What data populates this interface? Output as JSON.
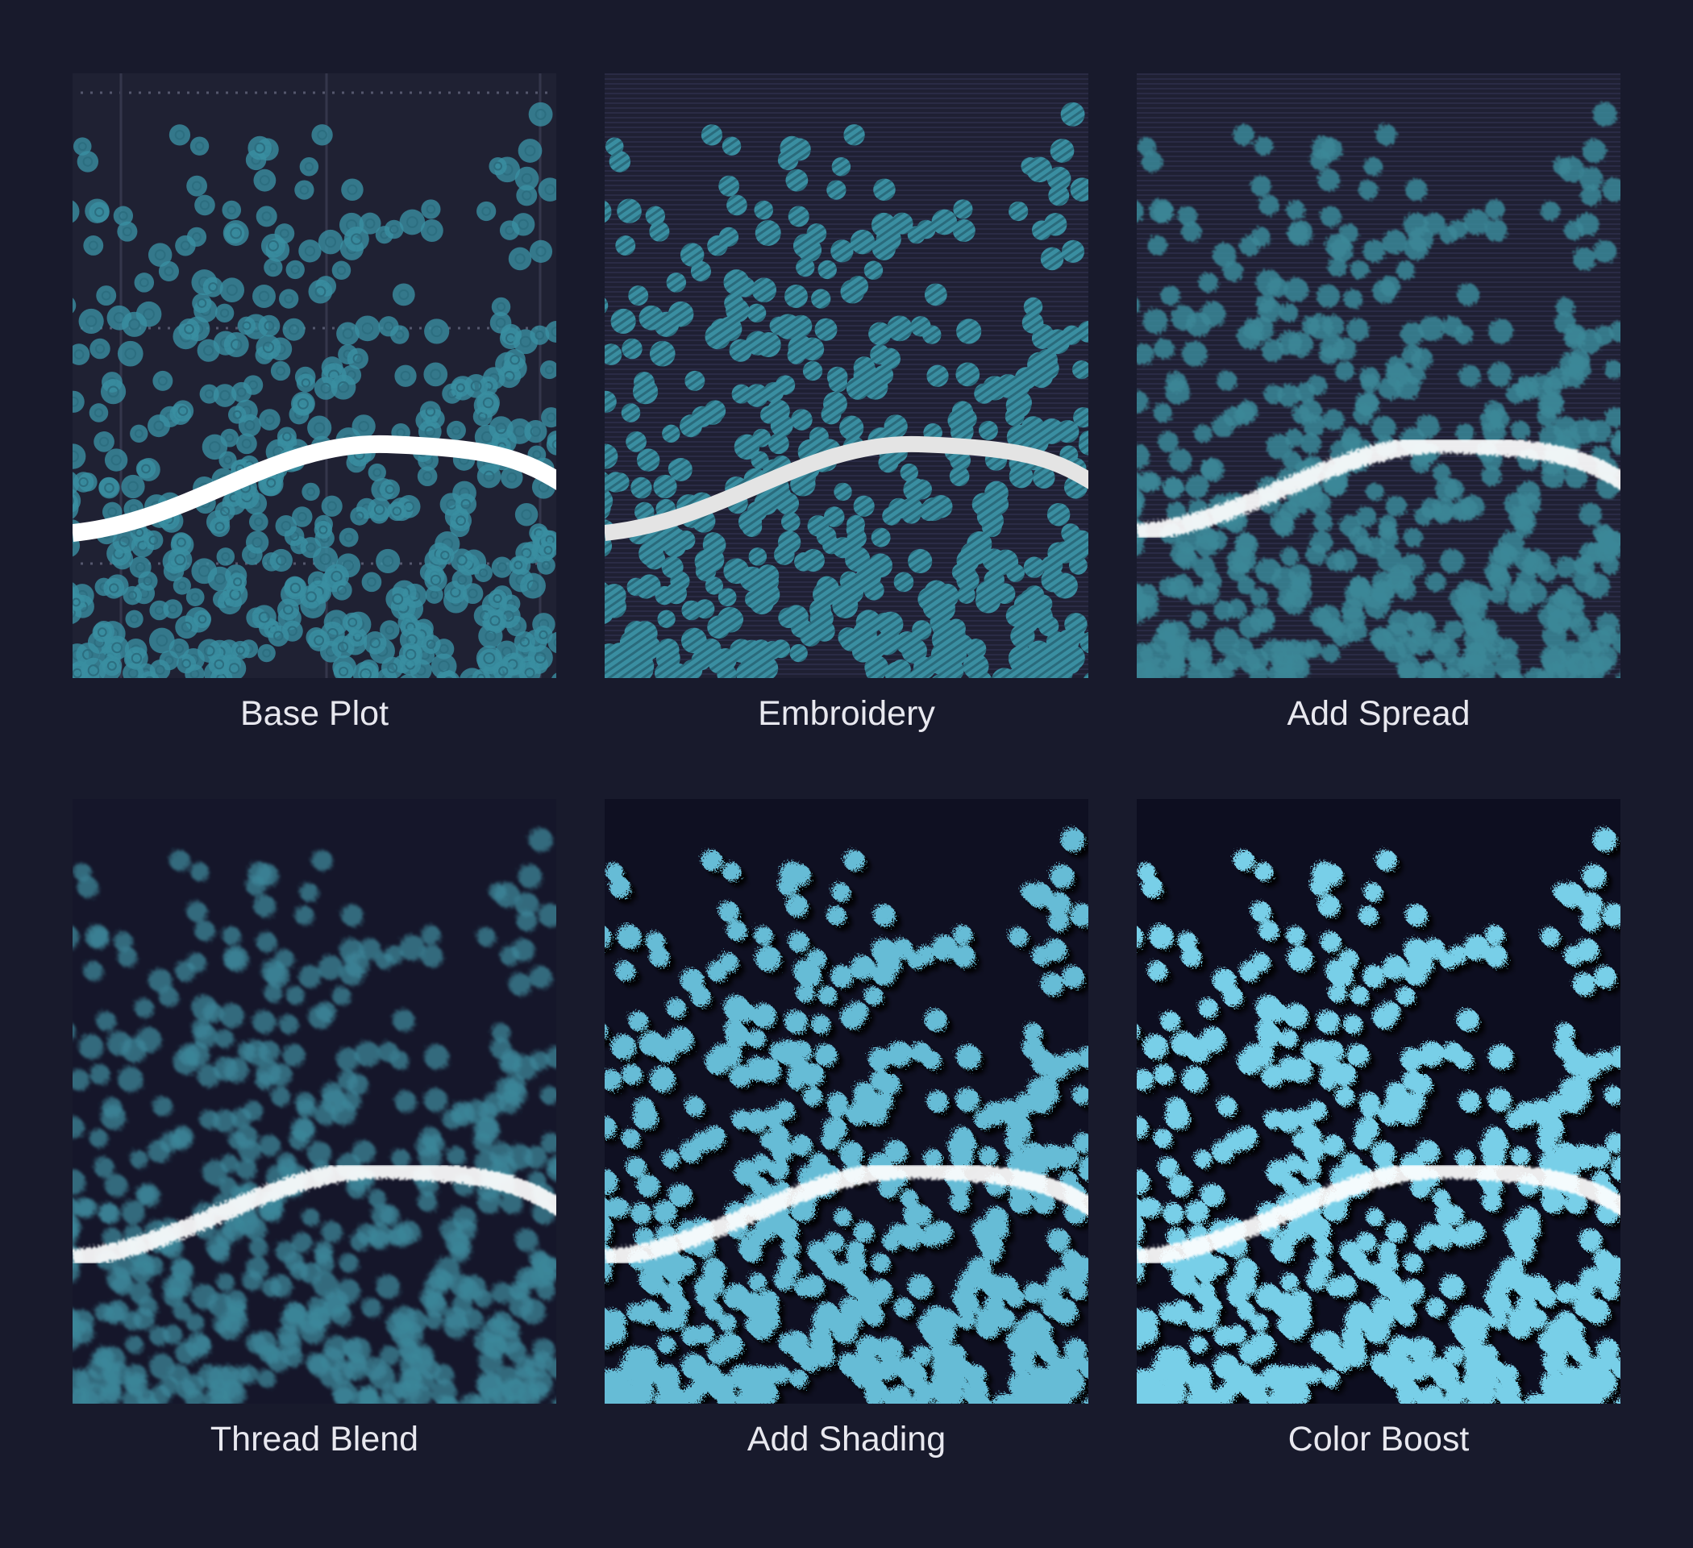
{
  "panels": [
    {
      "caption": "Base Plot"
    },
    {
      "caption": "Embroidery"
    },
    {
      "caption": "Add Spread"
    },
    {
      "caption": "Thread Blend"
    },
    {
      "caption": "Add Shading"
    },
    {
      "caption": "Color Boost"
    }
  ]
}
